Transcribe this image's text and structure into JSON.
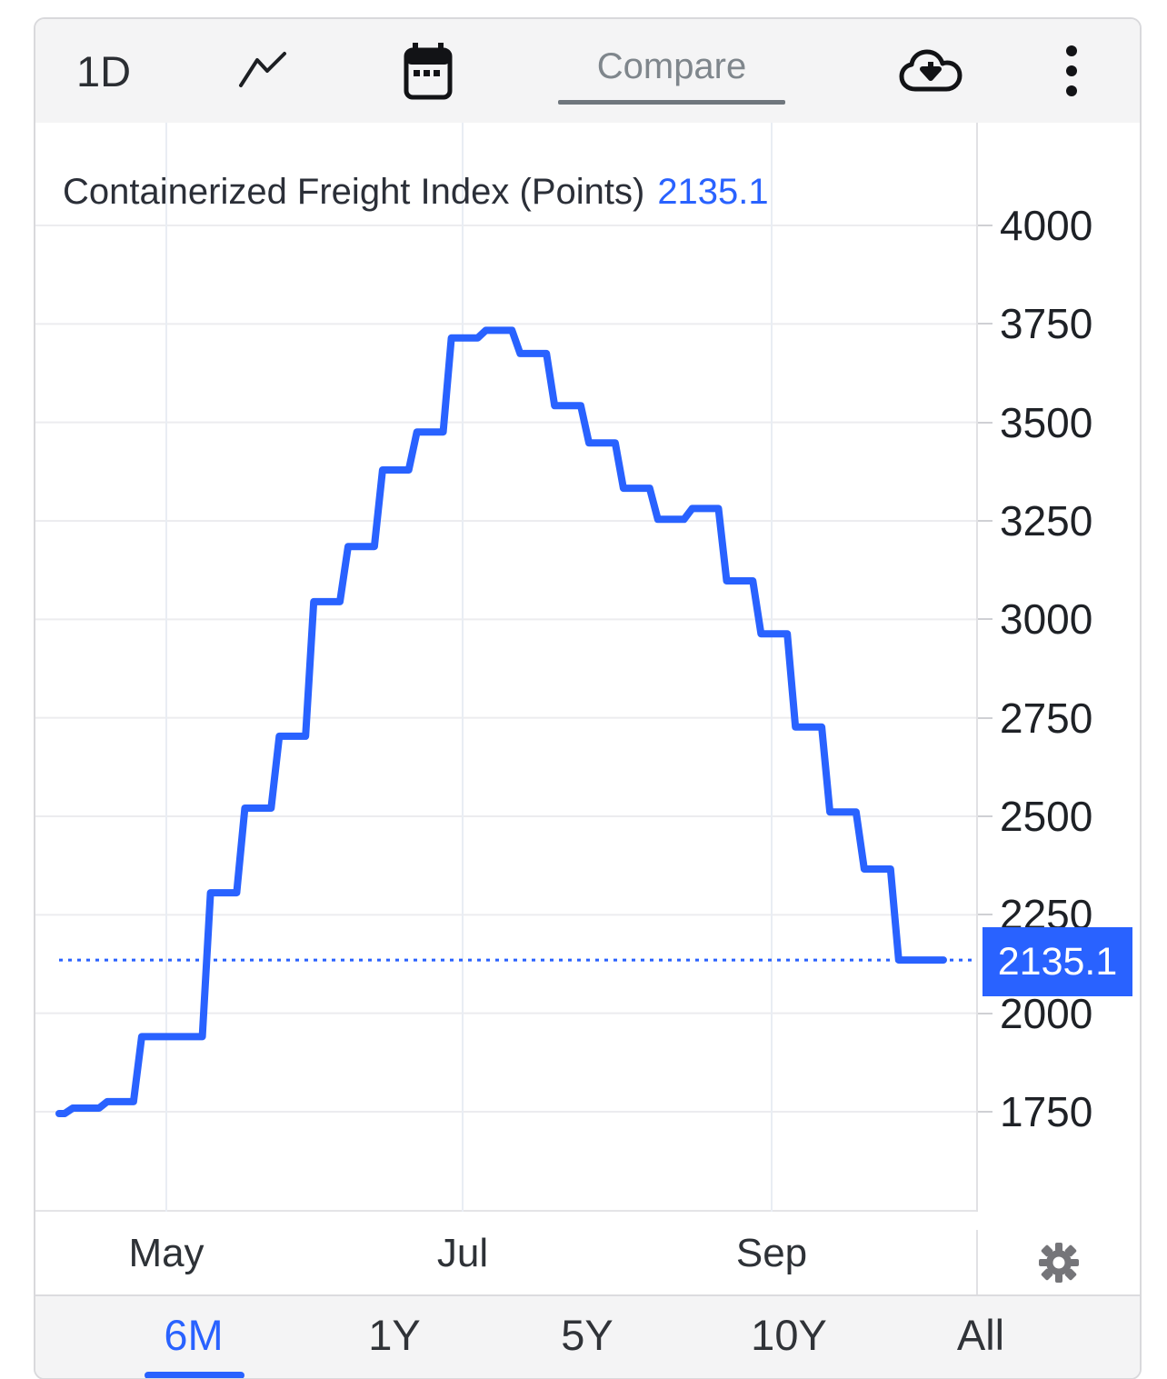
{
  "toolbar": {
    "interval": "1D",
    "compare": "Compare"
  },
  "header": {
    "title": "Containerized Freight Index (Points)",
    "value": "2135.1"
  },
  "price_scale": {
    "current_label": "2135.1"
  },
  "colors": {
    "accent": "#2962FF",
    "grid_h": "#ececef",
    "grid_v": "#e9edf3",
    "label_bg": "#2962FF"
  },
  "chart_data": {
    "type": "line",
    "style": "step",
    "title": "Containerized Freight Index (Points)",
    "ylabel": "Points",
    "current_value": 2135.1,
    "ylim": [
      1500,
      4250
    ],
    "grid": true,
    "legend_position": "none",
    "y_ticks": [
      4000,
      3750,
      3500,
      3250,
      3000,
      2750,
      2500,
      2250,
      2000,
      1750
    ],
    "x_months": [
      "May",
      "Jul",
      "Sep"
    ],
    "series_name": "Containerized Freight Index",
    "steps": [
      {
        "v": 1745.4,
        "w": 0.4
      },
      {
        "v": 1759.2,
        "w": 1
      },
      {
        "v": 1775.5,
        "w": 1
      },
      {
        "v": 1940.6,
        "w": 2
      },
      {
        "v": 2305.8,
        "w": 1
      },
      {
        "v": 2520.8,
        "w": 1
      },
      {
        "v": 2703.4,
        "w": 1
      },
      {
        "v": 3044.8,
        "w": 1
      },
      {
        "v": 3184.9,
        "w": 1
      },
      {
        "v": 3379.2,
        "w": 1
      },
      {
        "v": 3475.6,
        "w": 1
      },
      {
        "v": 3714.3,
        "w": 1
      },
      {
        "v": 3733.8,
        "w": 1
      },
      {
        "v": 3674.9,
        "w": 1
      },
      {
        "v": 3542.4,
        "w": 1
      },
      {
        "v": 3447.9,
        "w": 1
      },
      {
        "v": 3332.9,
        "w": 1
      },
      {
        "v": 3253.9,
        "w": 1
      },
      {
        "v": 3281.4,
        "w": 1
      },
      {
        "v": 3097.6,
        "w": 1
      },
      {
        "v": 2963.4,
        "w": 1
      },
      {
        "v": 2726.6,
        "w": 1
      },
      {
        "v": 2510.9,
        "w": 1
      },
      {
        "v": 2366.2,
        "w": 1
      },
      {
        "v": 2135.1,
        "w": 1.3
      }
    ]
  },
  "ranges": {
    "items": [
      {
        "label": "6M",
        "active": true
      },
      {
        "label": "1Y",
        "active": false
      },
      {
        "label": "5Y",
        "active": false
      },
      {
        "label": "10Y",
        "active": false
      },
      {
        "label": "All",
        "active": false
      }
    ]
  }
}
